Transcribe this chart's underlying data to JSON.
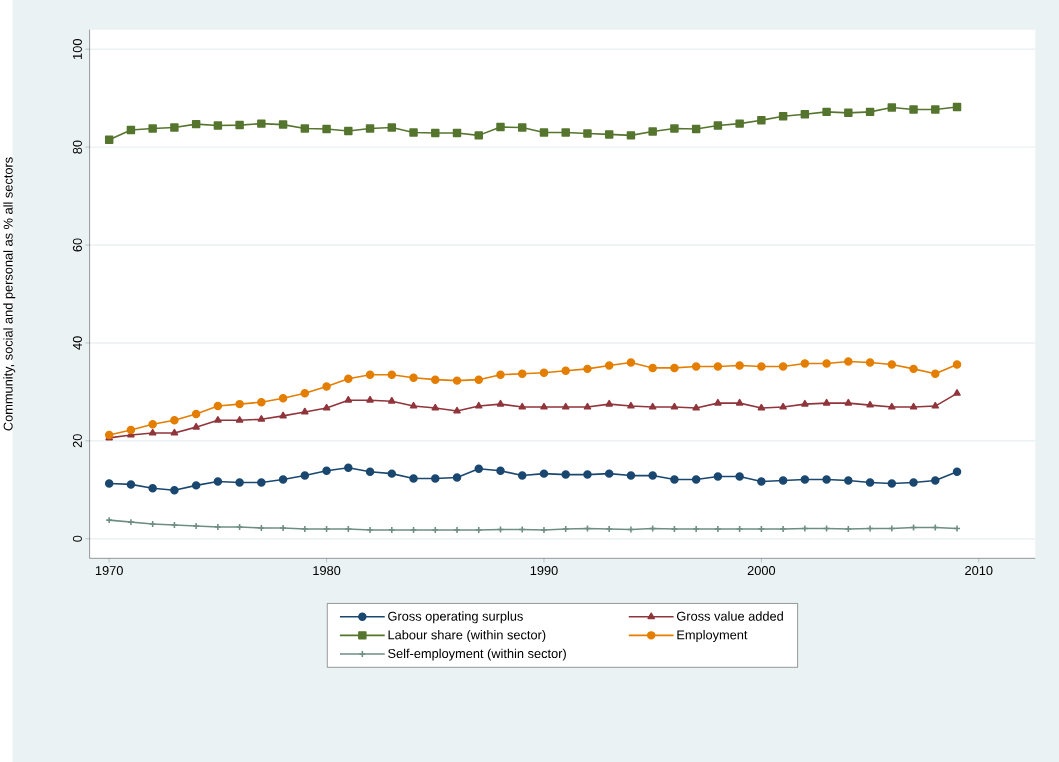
{
  "chart_data": {
    "type": "line",
    "ylabel": "Community, social and personal as % all sectors",
    "x": [
      1970,
      1971,
      1972,
      1973,
      1974,
      1975,
      1976,
      1977,
      1978,
      1979,
      1980,
      1981,
      1982,
      1983,
      1984,
      1985,
      1986,
      1987,
      1988,
      1989,
      1990,
      1991,
      1992,
      1993,
      1994,
      1995,
      1996,
      1997,
      1998,
      1999,
      2000,
      2001,
      2002,
      2003,
      2004,
      2005,
      2006,
      2007,
      2008,
      2009
    ],
    "series": [
      {
        "name": "Gross operating surplus",
        "color": "#1a476f",
        "marker": "circle",
        "values": [
          11.3,
          11.1,
          10.3,
          9.9,
          10.9,
          11.7,
          11.5,
          11.5,
          12.1,
          12.9,
          13.9,
          14.5,
          13.7,
          13.3,
          12.3,
          12.3,
          12.5,
          14.3,
          13.9,
          12.9,
          13.3,
          13.1,
          13.1,
          13.3,
          12.9,
          12.9,
          12.1,
          12.1,
          12.7,
          12.7,
          11.7,
          11.9,
          12.1,
          12.1,
          11.9,
          11.5,
          11.3,
          11.5,
          11.9,
          13.7
        ]
      },
      {
        "name": "Gross value added",
        "color": "#90353b",
        "marker": "triangle",
        "values": [
          20.6,
          21.2,
          21.6,
          21.6,
          22.8,
          24.2,
          24.2,
          24.4,
          25.1,
          25.9,
          26.7,
          28.3,
          28.3,
          28.1,
          27.1,
          26.7,
          26.1,
          27.1,
          27.5,
          26.9,
          26.9,
          26.9,
          26.9,
          27.5,
          27.1,
          26.9,
          26.9,
          26.7,
          27.7,
          27.7,
          26.7,
          26.9,
          27.5,
          27.7,
          27.7,
          27.3,
          26.9,
          26.9,
          27.1,
          29.7
        ]
      },
      {
        "name": "Labour share (within sector)",
        "color": "#55752f",
        "marker": "square",
        "values": [
          81.5,
          83.5,
          83.8,
          84.0,
          84.7,
          84.4,
          84.5,
          84.8,
          84.6,
          83.8,
          83.7,
          83.3,
          83.8,
          84.0,
          83.0,
          82.9,
          82.9,
          82.4,
          84.1,
          84.0,
          83.0,
          83.0,
          82.8,
          82.6,
          82.4,
          83.2,
          83.8,
          83.7,
          84.4,
          84.8,
          85.5,
          86.3,
          86.7,
          87.2,
          87.0,
          87.2,
          88.1,
          87.7,
          87.7,
          88.2
        ]
      },
      {
        "name": "Employment",
        "color": "#e37e00",
        "marker": "circle",
        "values": [
          21.2,
          22.2,
          23.4,
          24.2,
          25.5,
          27.1,
          27.5,
          27.9,
          28.7,
          29.7,
          31.1,
          32.7,
          33.5,
          33.5,
          32.9,
          32.5,
          32.3,
          32.5,
          33.5,
          33.7,
          33.9,
          34.3,
          34.7,
          35.4,
          36.0,
          34.9,
          34.9,
          35.2,
          35.2,
          35.4,
          35.2,
          35.2,
          35.8,
          35.8,
          36.2,
          36.0,
          35.6,
          34.7,
          33.7,
          35.6
        ]
      },
      {
        "name": "Self-employment (within sector)",
        "color": "#6e8e84",
        "marker": "cross",
        "values": [
          3.8,
          3.4,
          3.0,
          2.8,
          2.6,
          2.4,
          2.4,
          2.2,
          2.2,
          2.0,
          2.0,
          2.0,
          1.8,
          1.8,
          1.8,
          1.8,
          1.8,
          1.8,
          1.9,
          1.9,
          1.8,
          2.0,
          2.1,
          2.0,
          1.9,
          2.1,
          2.0,
          2.0,
          2.0,
          2.0,
          2.0,
          2.0,
          2.1,
          2.1,
          2.0,
          2.1,
          2.1,
          2.3,
          2.3,
          2.1
        ]
      }
    ],
    "xlim": [
      1969.1,
      2012.6
    ],
    "ylim": [
      -4,
      104
    ],
    "xticks": [
      1970,
      1980,
      1990,
      2000,
      2010
    ],
    "yticks": [
      0,
      20,
      40,
      60,
      80,
      100
    ],
    "grid": "y",
    "legend": "bottom",
    "line_style": "solid"
  }
}
